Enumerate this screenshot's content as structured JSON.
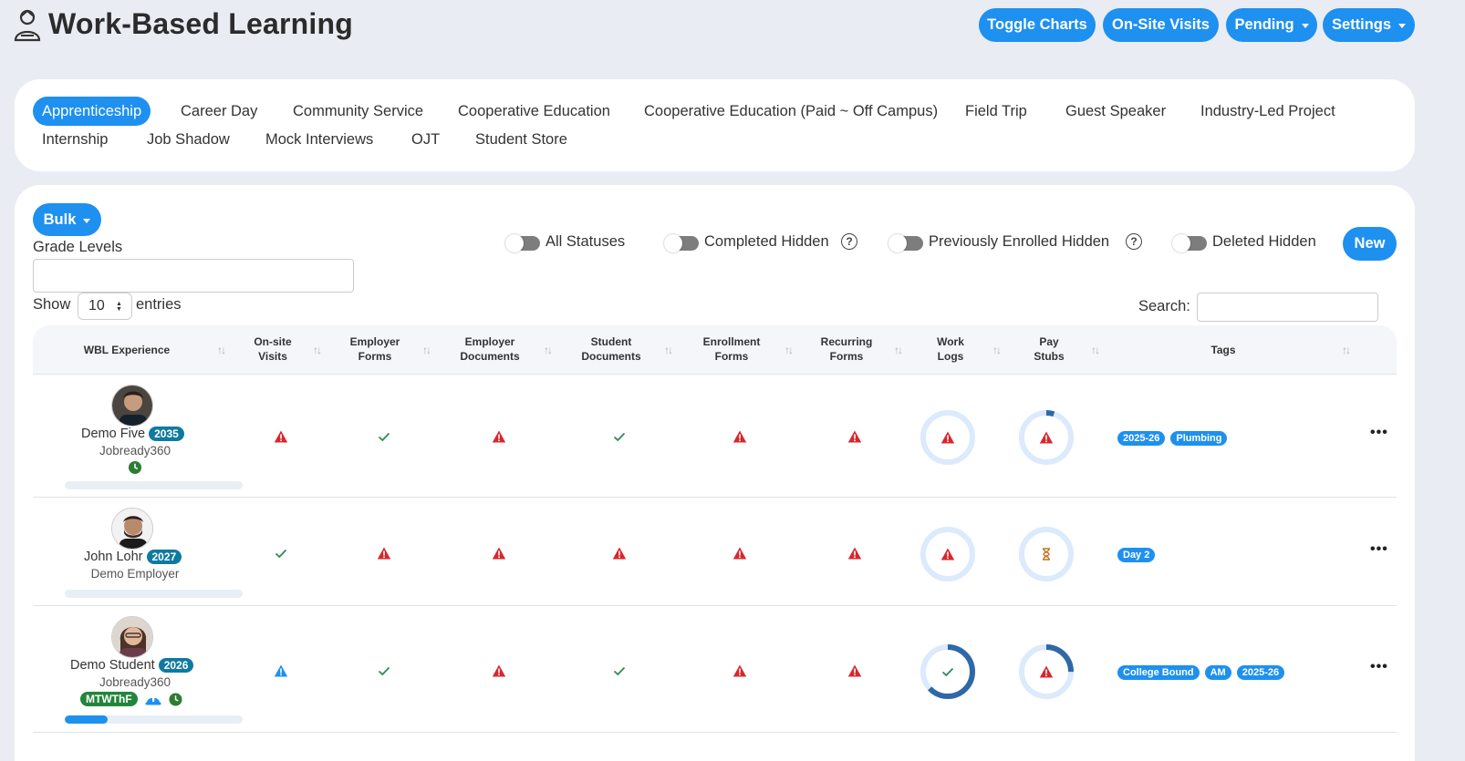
{
  "header": {
    "title": "Work-Based Learning",
    "buttons": {
      "toggle_charts": "Toggle Charts",
      "onsite_visits": "On-Site Visits",
      "pending": "Pending",
      "settings": "Settings"
    }
  },
  "tabs": [
    "Apprenticeship",
    "Career Day",
    "Community Service",
    "Cooperative Education",
    "Cooperative Education (Paid ~ Off Campus)",
    "Field Trip",
    "Guest Speaker",
    "Industry-Led Project",
    "Internship",
    "Job Shadow",
    "Mock Interviews",
    "OJT",
    "Student Store"
  ],
  "active_tab": "Apprenticeship",
  "controls": {
    "bulk": "Bulk",
    "grade_levels_label": "Grade Levels",
    "grade_levels_value": "",
    "show": "Show",
    "entries_value": "10",
    "entries": "entries",
    "search_label": "Search:",
    "search_value": "",
    "toggles": {
      "all_statuses": "All Statuses",
      "completed_hidden": "Completed Hidden",
      "previously_enrolled_hidden": "Previously Enrolled Hidden",
      "deleted_hidden": "Deleted Hidden"
    },
    "help_glyph": "?",
    "new": "New"
  },
  "table": {
    "columns": [
      [
        "WBL Experience"
      ],
      [
        "On-site",
        "Visits"
      ],
      [
        "Employer",
        "Forms"
      ],
      [
        "Employer",
        "Documents"
      ],
      [
        "Student",
        "Documents"
      ],
      [
        "Enrollment",
        "Forms"
      ],
      [
        "Recurring",
        "Forms"
      ],
      [
        "Work",
        "Logs"
      ],
      [
        "Pay",
        "Stubs"
      ],
      [
        "Tags"
      ]
    ],
    "rows": [
      {
        "name": "Demo Five",
        "year": "2035",
        "employer": "Jobready360",
        "progress": 0.0,
        "status": [
          "warn",
          "check",
          "warn",
          "check",
          "warn",
          "warn"
        ],
        "work_logs": {
          "fill": 0.0,
          "icon": "warn"
        },
        "pay_stubs": {
          "fill": 0.05,
          "icon": "warn"
        },
        "tags": [
          "2025-26",
          "Plumbing"
        ]
      },
      {
        "name": "John Lohr",
        "year": "2027",
        "employer": "Demo Employer",
        "progress": 0.0,
        "status": [
          "check",
          "warn",
          "warn",
          "warn",
          "warn",
          "warn"
        ],
        "work_logs": {
          "fill": 0.0,
          "icon": "warn"
        },
        "pay_stubs": {
          "fill": 0.0,
          "icon": "hourglass"
        },
        "tags": [
          "Day 2"
        ]
      },
      {
        "name": "Demo Student",
        "year": "2026",
        "employer": "Jobready360",
        "days": "MTWThF",
        "progress": 0.24,
        "status": [
          "info",
          "check",
          "warn",
          "check",
          "warn",
          "warn"
        ],
        "work_logs": {
          "fill": 0.63,
          "icon": "check"
        },
        "pay_stubs": {
          "fill": 0.25,
          "icon": "warn"
        },
        "tags": [
          "College Bound",
          "AM",
          "2025-26"
        ]
      }
    ]
  },
  "colors": {
    "accent": "#1e90ef",
    "warn": "#d9262c",
    "check": "#2e8b57",
    "ring_bg": "#dbeafc",
    "ring_fill": "#2f68a8"
  }
}
